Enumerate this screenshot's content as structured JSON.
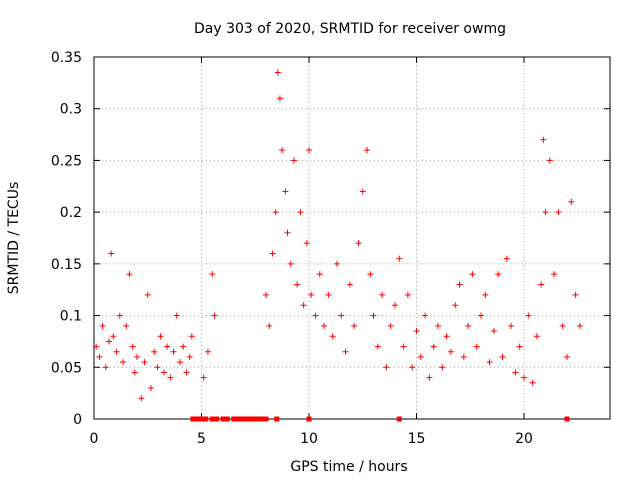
{
  "chart_data": {
    "type": "scatter",
    "title": "Day 303 of 2020, SRMTID for receiver owmg",
    "xlabel": "GPS time / hours",
    "ylabel": "SRMTID / TECUs",
    "xlim": [
      0,
      24
    ],
    "ylim": [
      0,
      0.35
    ],
    "xticks": [
      0,
      5,
      10,
      15,
      20
    ],
    "xtick_labels": [
      "0",
      "5",
      "10",
      "15",
      "20"
    ],
    "yticks": [
      0,
      0.05,
      0.1,
      0.15,
      0.2,
      0.25,
      0.3,
      0.35
    ],
    "ytick_labels": [
      "0",
      "0.05",
      "0.1",
      "0.15",
      "0.2",
      "0.25",
      "0.3",
      "0.35"
    ],
    "grid": true,
    "marker": "plus",
    "color": "#ff0000",
    "zero_marker": "square",
    "series": [
      {
        "name": "SRMTID",
        "x": [
          0.1,
          0.25,
          0.4,
          0.55,
          0.7,
          0.8,
          0.9,
          1.05,
          1.2,
          1.35,
          1.5,
          1.65,
          1.8,
          1.9,
          2.0,
          2.2,
          2.35,
          2.5,
          2.65,
          2.8,
          2.95,
          3.1,
          3.25,
          3.4,
          3.55,
          3.7,
          3.85,
          4.0,
          4.15,
          4.3,
          4.45,
          4.55,
          5.1,
          5.3,
          5.5,
          5.6,
          8.0,
          8.15,
          8.3,
          8.45,
          8.55,
          8.65,
          8.75,
          8.9,
          9.0,
          9.15,
          9.3,
          9.45,
          9.6,
          9.75,
          9.9,
          10.0,
          10.1,
          10.3,
          10.5,
          10.7,
          10.9,
          11.1,
          11.3,
          11.5,
          11.7,
          11.9,
          12.1,
          12.3,
          12.5,
          12.7,
          12.85,
          13.0,
          13.2,
          13.4,
          13.6,
          13.8,
          14.0,
          14.2,
          14.4,
          14.6,
          14.8,
          15.0,
          15.2,
          15.4,
          15.6,
          15.8,
          16.0,
          16.2,
          16.4,
          16.6,
          16.8,
          17.0,
          17.2,
          17.4,
          17.6,
          17.8,
          18.0,
          18.2,
          18.4,
          18.6,
          18.8,
          19.0,
          19.2,
          19.4,
          19.6,
          19.8,
          20.0,
          20.2,
          20.4,
          20.6,
          20.8,
          20.9,
          21.0,
          21.2,
          21.4,
          21.6,
          21.8,
          22.0,
          22.2,
          22.4,
          22.6
        ],
        "y": [
          0.07,
          0.06,
          0.09,
          0.05,
          0.075,
          0.16,
          0.08,
          0.065,
          0.1,
          0.055,
          0.09,
          0.14,
          0.07,
          0.045,
          0.06,
          0.02,
          0.055,
          0.12,
          0.03,
          0.065,
          0.05,
          0.08,
          0.045,
          0.07,
          0.04,
          0.065,
          0.1,
          0.055,
          0.07,
          0.045,
          0.06,
          0.08,
          0.04,
          0.065,
          0.14,
          0.1,
          0.12,
          0.09,
          0.16,
          0.2,
          0.335,
          0.31,
          0.26,
          0.22,
          0.18,
          0.15,
          0.25,
          0.13,
          0.2,
          0.11,
          0.17,
          0.26,
          0.12,
          0.1,
          0.14,
          0.09,
          0.12,
          0.08,
          0.15,
          0.1,
          0.065,
          0.13,
          0.09,
          0.17,
          0.22,
          0.26,
          0.14,
          0.1,
          0.07,
          0.12,
          0.05,
          0.09,
          0.11,
          0.155,
          0.07,
          0.12,
          0.05,
          0.085,
          0.06,
          0.1,
          0.04,
          0.07,
          0.09,
          0.05,
          0.08,
          0.065,
          0.11,
          0.13,
          0.06,
          0.09,
          0.14,
          0.07,
          0.1,
          0.12,
          0.055,
          0.085,
          0.14,
          0.06,
          0.155,
          0.09,
          0.045,
          0.07,
          0.04,
          0.1,
          0.035,
          0.08,
          0.13,
          0.27,
          0.2,
          0.25,
          0.14,
          0.2,
          0.09,
          0.06,
          0.21,
          0.12,
          0.09
        ]
      }
    ],
    "zero_x": [
      4.6,
      4.75,
      4.9,
      5.05,
      5.2,
      5.5,
      5.7,
      6.0,
      6.2,
      6.5,
      6.65,
      6.8,
      7.0,
      7.15,
      7.3,
      7.45,
      7.6,
      7.75,
      7.9,
      8.0,
      8.5,
      10.0,
      14.2,
      22.0
    ]
  }
}
